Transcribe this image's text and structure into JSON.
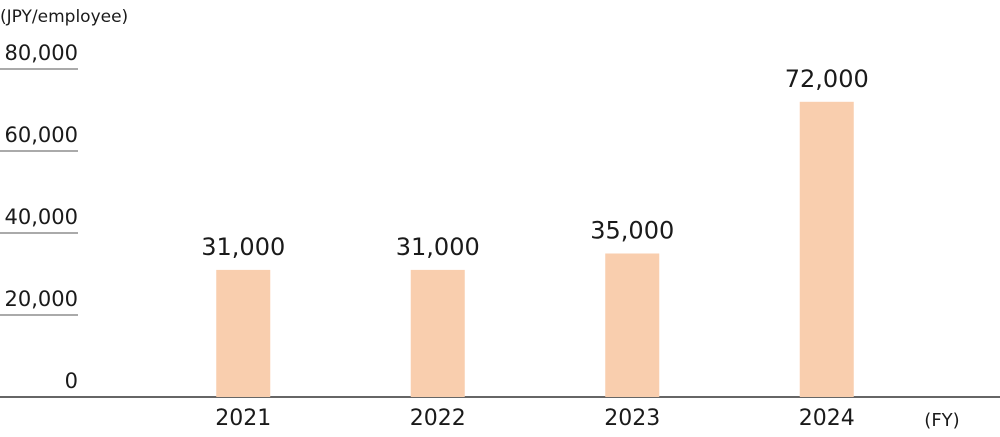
{
  "chart_data": {
    "type": "bar",
    "y_axis_label": "(JPY/employee)",
    "x_axis_label": "(FY)",
    "categories": [
      "2021",
      "2022",
      "2023",
      "2024"
    ],
    "values": [
      31000,
      31000,
      35000,
      72000
    ],
    "value_labels": [
      "31,000",
      "31,000",
      "35,000",
      "72,000"
    ],
    "color": "#f9ceae",
    "ylim": [
      0,
      80000
    ],
    "yticks": [
      0,
      {
        "value": 20000,
        "label": "20,000"
      },
      {
        "value": 40000,
        "label": "40,000"
      },
      {
        "value": 60000,
        "label": "60,000"
      },
      {
        "value": 80000,
        "label": "80,000"
      }
    ]
  }
}
